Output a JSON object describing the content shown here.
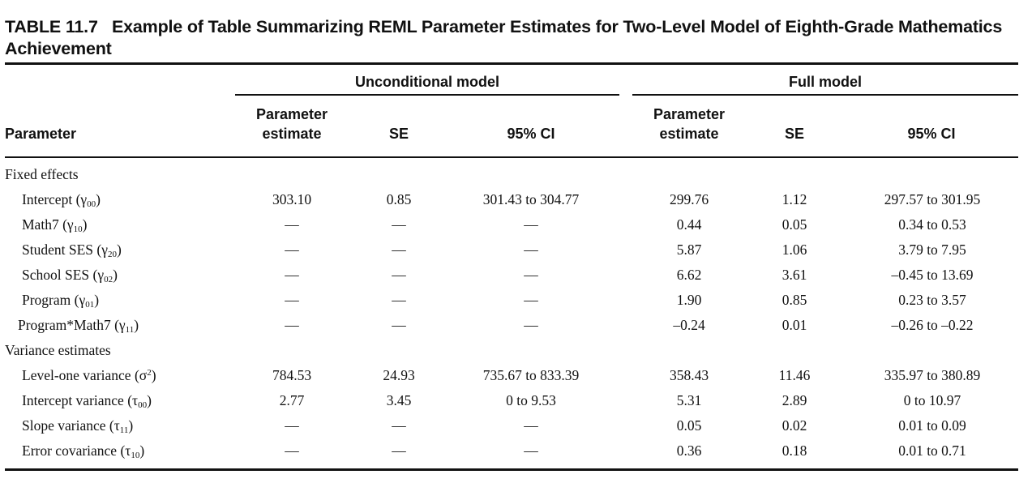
{
  "caption": {
    "label": "TABLE 11.7",
    "title": "Example of Table Summarizing REML Parameter Estimates for Two-Level Model of Eighth-Grade Mathematics Achievement"
  },
  "header": {
    "group_unconditional": "Unconditional model",
    "group_full": "Full model",
    "parameter": "Parameter",
    "estimate_line1": "Parameter",
    "estimate_line2": "estimate",
    "se": "SE",
    "ci": "95% CI"
  },
  "sections": [
    {
      "title": "Fixed effects",
      "rows": [
        {
          "name": "Intercept",
          "sym": "γ",
          "sub": "00",
          "sup": "",
          "u_est": "303.10",
          "u_se": "0.85",
          "u_ci": "301.43 to 304.77",
          "f_est": "299.76",
          "f_se": "1.12",
          "f_ci": "297.57 to 301.95"
        },
        {
          "name": "Math7",
          "sym": "γ",
          "sub": "10",
          "sup": "",
          "u_est": "—",
          "u_se": "—",
          "u_ci": "—",
          "f_est": "0.44",
          "f_se": "0.05",
          "f_ci": "0.34 to 0.53"
        },
        {
          "name": "Student SES",
          "sym": "γ",
          "sub": "20",
          "sup": "",
          "u_est": "—",
          "u_se": "—",
          "u_ci": "—",
          "f_est": "5.87",
          "f_se": "1.06",
          "f_ci": "3.79 to 7.95"
        },
        {
          "name": "School SES",
          "sym": "γ",
          "sub": "02",
          "sup": "",
          "u_est": "—",
          "u_se": "—",
          "u_ci": "—",
          "f_est": "6.62",
          "f_se": "3.61",
          "f_ci": "–0.45 to 13.69"
        },
        {
          "name": "Program",
          "sym": "γ",
          "sub": "01",
          "sup": "",
          "u_est": "—",
          "u_se": "—",
          "u_ci": "—",
          "f_est": "1.90",
          "f_se": "0.85",
          "f_ci": "0.23 to 3.57"
        },
        {
          "name": "Program*Math7",
          "sym": "γ",
          "sub": "11",
          "sup": "",
          "u_est": "—",
          "u_se": "—",
          "u_ci": "—",
          "f_est": "–0.24",
          "f_se": "0.01",
          "f_ci": "–0.26 to –0.22"
        }
      ]
    },
    {
      "title": "Variance estimates",
      "rows": [
        {
          "name": "Level-one variance",
          "sym": "σ",
          "sub": "",
          "sup": "2",
          "u_est": "784.53",
          "u_se": "24.93",
          "u_ci": "735.67 to 833.39",
          "f_est": "358.43",
          "f_se": "11.46",
          "f_ci": "335.97 to 380.89"
        },
        {
          "name": "Intercept variance",
          "sym": "τ",
          "sub": "00",
          "sup": "",
          "u_est": "2.77",
          "u_se": "3.45",
          "u_ci": "0 to 9.53",
          "f_est": "5.31",
          "f_se": "2.89",
          "f_ci": "0 to 10.97"
        },
        {
          "name": "Slope variance",
          "sym": "τ",
          "sub": "11",
          "sup": "",
          "u_est": "—",
          "u_se": "—",
          "u_ci": "—",
          "f_est": "0.05",
          "f_se": "0.02",
          "f_ci": "0.01 to 0.09"
        },
        {
          "name": "Error covariance",
          "sym": "τ",
          "sub": "10",
          "sup": "",
          "u_est": "—",
          "u_se": "—",
          "u_ci": "—",
          "f_est": "0.36",
          "f_se": "0.18",
          "f_ci": "0.01 to 0.71"
        }
      ]
    }
  ]
}
